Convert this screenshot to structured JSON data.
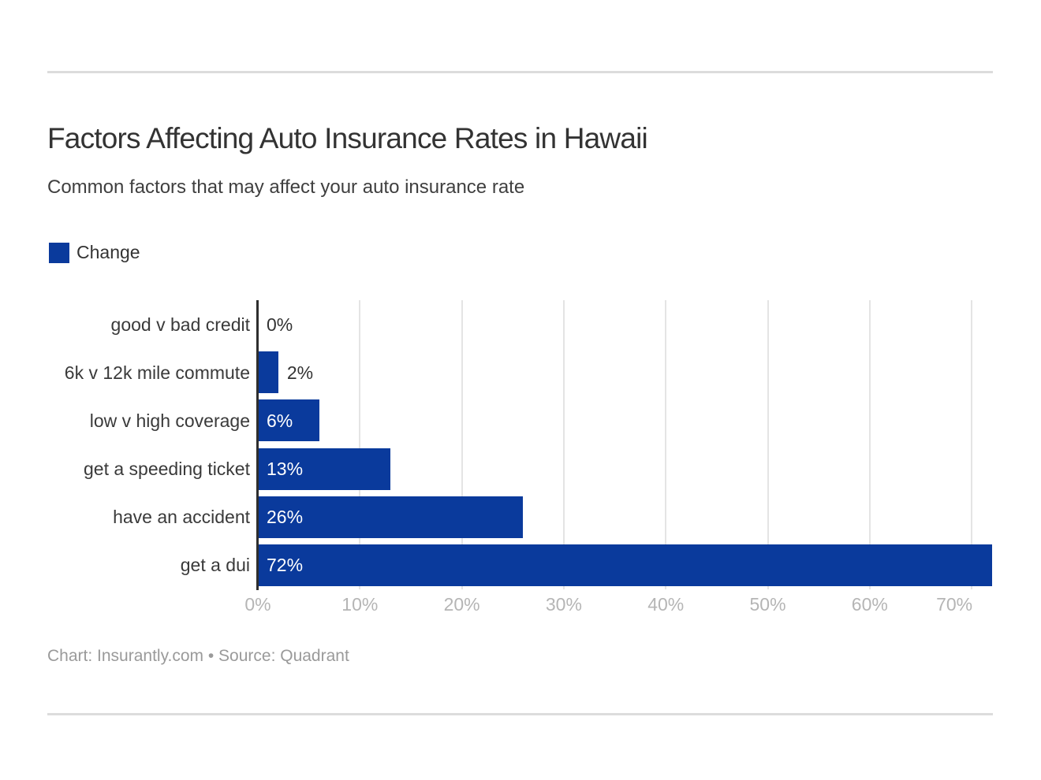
{
  "header": {
    "title": "Factors Affecting Auto Insurance Rates in Hawaii",
    "subtitle": "Common factors that may affect your auto insurance rate"
  },
  "legend": {
    "label": "Change",
    "swatch_color": "#0a3a9c"
  },
  "chart_data": {
    "type": "bar",
    "orientation": "horizontal",
    "title": "Factors Affecting Auto Insurance Rates in Hawaii",
    "subtitle": "Common factors that may affect your auto insurance rate",
    "series_name": "Change",
    "categories": [
      "good v bad credit",
      "6k v 12k mile commute",
      "low v high coverage",
      "get a speeding ticket",
      "have an accident",
      "get a dui"
    ],
    "values": [
      0,
      2,
      6,
      13,
      26,
      72
    ],
    "value_labels": [
      "0%",
      "2%",
      "6%",
      "13%",
      "26%",
      "72%"
    ],
    "x_tick_values": [
      0,
      10,
      20,
      30,
      40,
      50,
      60,
      70
    ],
    "x_tick_labels": [
      "0%",
      "10%",
      "20%",
      "30%",
      "40%",
      "50%",
      "60%",
      "70%"
    ],
    "xlim": [
      0,
      72
    ],
    "bar_color": "#0a3a9c",
    "grid": true,
    "gridline_color": "#e4e4e4",
    "axis_color": "#2e2e2e",
    "legend_position": "top-left"
  },
  "footer": {
    "text": "Chart: Insurantly.com • Source: Quadrant"
  }
}
